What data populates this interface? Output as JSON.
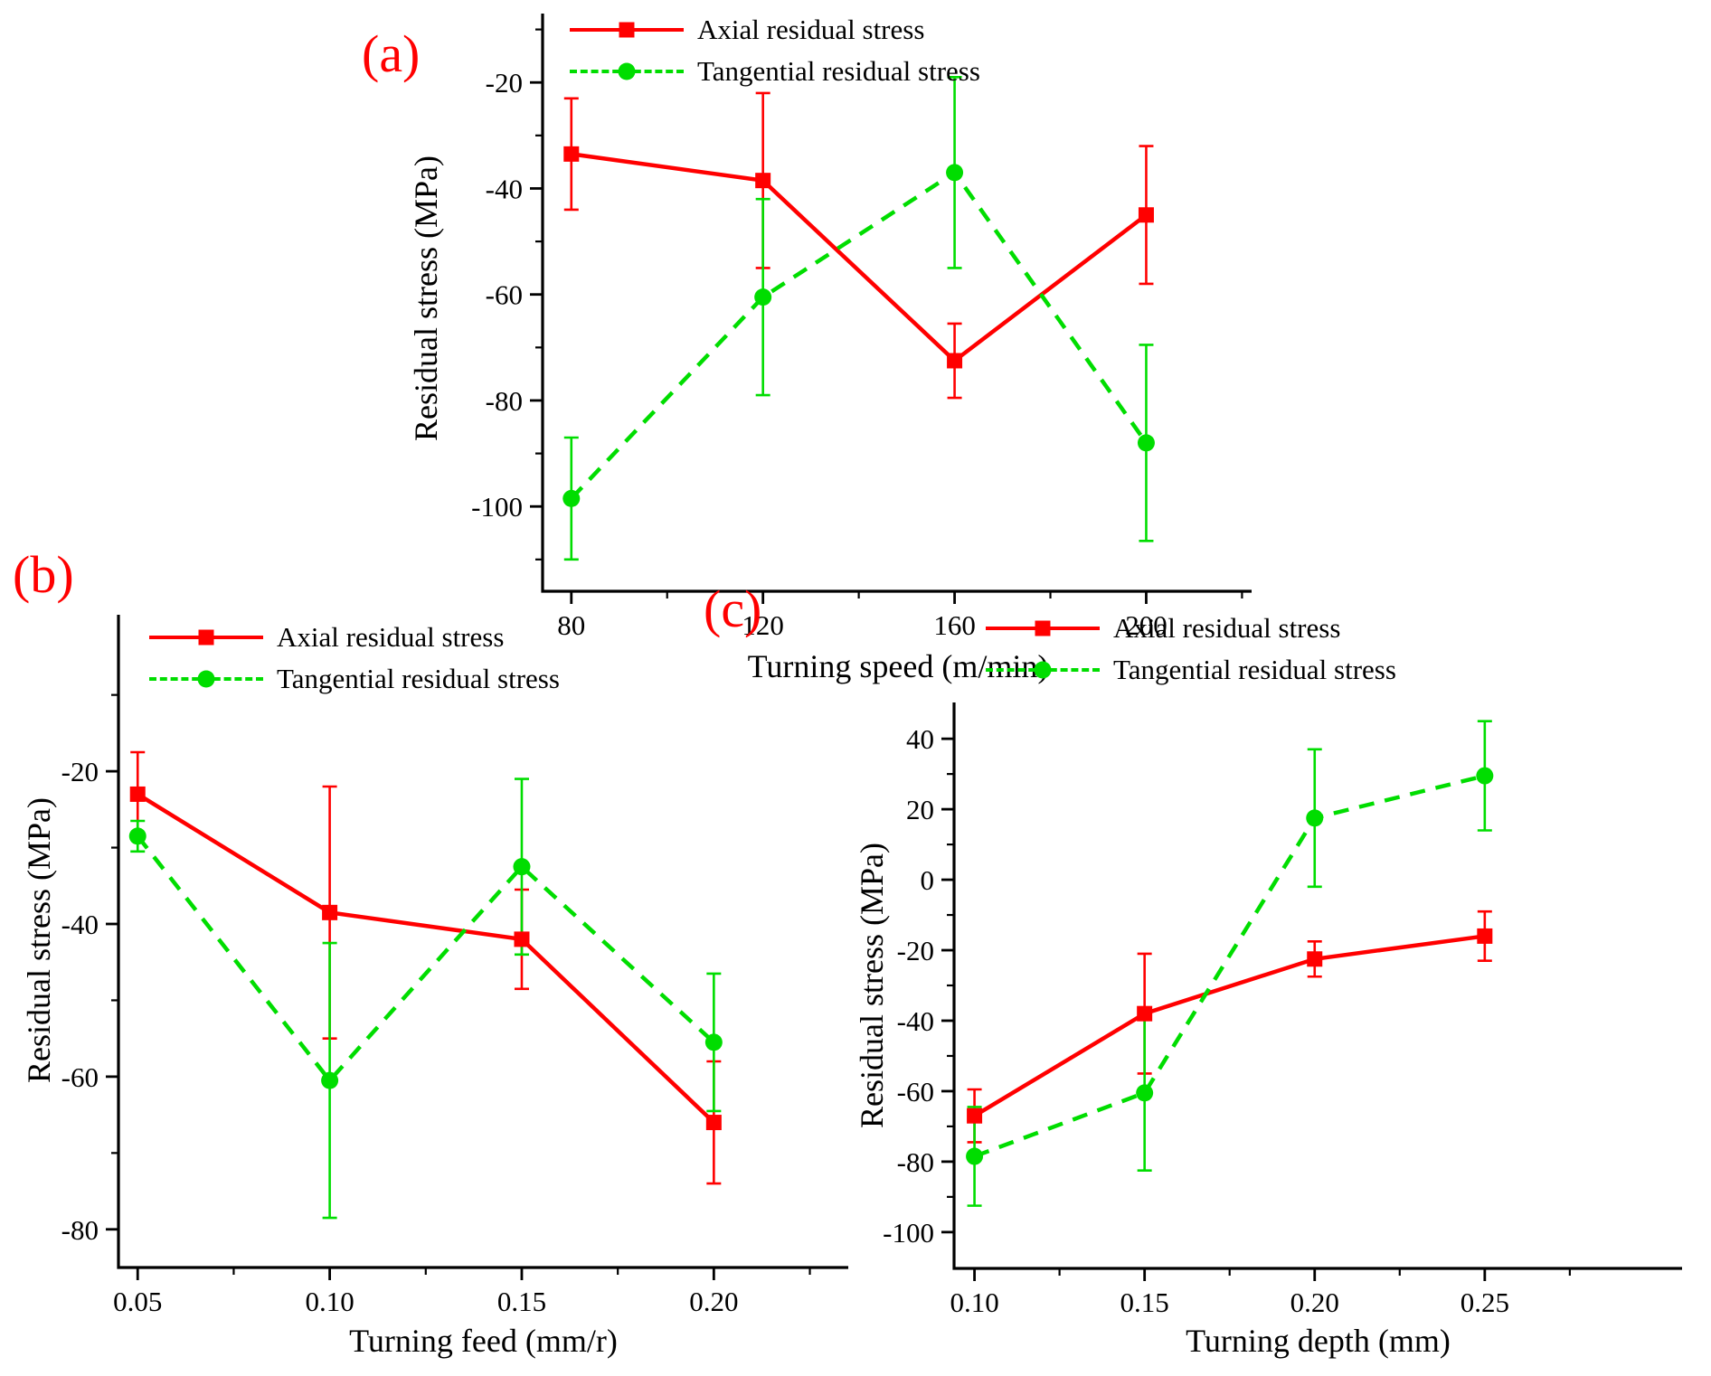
{
  "colors": {
    "axial": "#ff0000",
    "tangential": "#00dd00",
    "panel_label": "#ff0000",
    "axis": "#000000",
    "text": "#000000",
    "background": "#ffffff"
  },
  "chart_data": [
    {
      "id": "a",
      "panel_label": "(a)",
      "type": "line",
      "xlabel": "Turning speed (m/min)",
      "ylabel": "Residual stress (MPa)",
      "x": [
        80,
        120,
        160,
        200
      ],
      "xtick_labels": [
        "80",
        "120",
        "160",
        "200"
      ],
      "yticks": [
        -20,
        -40,
        -60,
        -80,
        -100
      ],
      "ytick_labels": [
        "-20",
        "-40",
        "-60",
        "-80",
        "-100"
      ],
      "xlim": [
        74,
        222
      ],
      "ylim": [
        -116,
        -7
      ],
      "grid": false,
      "legend_position": "top-left-inside",
      "series": [
        {
          "name": "Axial residual stress",
          "color_key": "axial",
          "line_style": "solid",
          "marker": "square",
          "values": [
            -33.5,
            -38.5,
            -72.5,
            -45
          ],
          "error": [
            10.5,
            16.5,
            7,
            13
          ]
        },
        {
          "name": "Tangential residual stress",
          "color_key": "tangential",
          "line_style": "dashed",
          "marker": "circle",
          "values": [
            -98.5,
            -60.5,
            -37,
            -88
          ],
          "error": [
            11.5,
            18.5,
            18,
            18.5
          ]
        }
      ]
    },
    {
      "id": "b",
      "panel_label": "(b)",
      "type": "line",
      "xlabel": "Turning feed (mm/r)",
      "ylabel": "Residual stress (MPa)",
      "x": [
        0.05,
        0.1,
        0.15,
        0.2
      ],
      "xtick_labels": [
        "0.05",
        "0.10",
        "0.15",
        "0.20"
      ],
      "yticks": [
        -20,
        -40,
        -60,
        -80
      ],
      "ytick_labels": [
        "-20",
        "-40",
        "-60",
        "-80"
      ],
      "xlim": [
        0.045,
        0.235
      ],
      "ylim": [
        -85,
        0.5
      ],
      "grid": false,
      "legend_position": "top-left-inside",
      "series": [
        {
          "name": "Axial residual stress",
          "color_key": "axial",
          "line_style": "solid",
          "marker": "square",
          "values": [
            -23,
            -38.5,
            -42,
            -66
          ],
          "error": [
            5.5,
            16.5,
            6.5,
            8
          ]
        },
        {
          "name": "Tangential residual stress",
          "color_key": "tangential",
          "line_style": "dashed",
          "marker": "circle",
          "values": [
            -28.5,
            -60.5,
            -32.5,
            -55.5
          ],
          "error": [
            2,
            18,
            11.5,
            9
          ]
        }
      ]
    },
    {
      "id": "c",
      "panel_label": "(c)",
      "type": "line",
      "xlabel": "Turning depth (mm)",
      "ylabel": "Residual stress (MPa)",
      "x": [
        0.1,
        0.15,
        0.2,
        0.25
      ],
      "xtick_labels": [
        "0.10",
        "0.15",
        "0.20",
        "0.25"
      ],
      "yticks": [
        40,
        20,
        0,
        -20,
        -40,
        -60,
        -80,
        -100
      ],
      "ytick_labels": [
        "40",
        "20",
        "0",
        "-20",
        "-40",
        "-60",
        "-80",
        "-100"
      ],
      "xlim": [
        0.094,
        0.308
      ],
      "ylim": [
        -110.3,
        50.3
      ],
      "grid": false,
      "legend_position": "top-left-inside",
      "series": [
        {
          "name": "Axial residual stress",
          "color_key": "axial",
          "line_style": "solid",
          "marker": "square",
          "values": [
            -67,
            -38,
            -22.5,
            -16
          ],
          "error": [
            7.5,
            17,
            5,
            7
          ]
        },
        {
          "name": "Tangential residual stress",
          "color_key": "tangential",
          "line_style": "dashed",
          "marker": "circle",
          "values": [
            -78.5,
            -60.5,
            17.5,
            29.5
          ],
          "error": [
            14,
            22,
            19.5,
            15.5
          ]
        }
      ]
    }
  ]
}
